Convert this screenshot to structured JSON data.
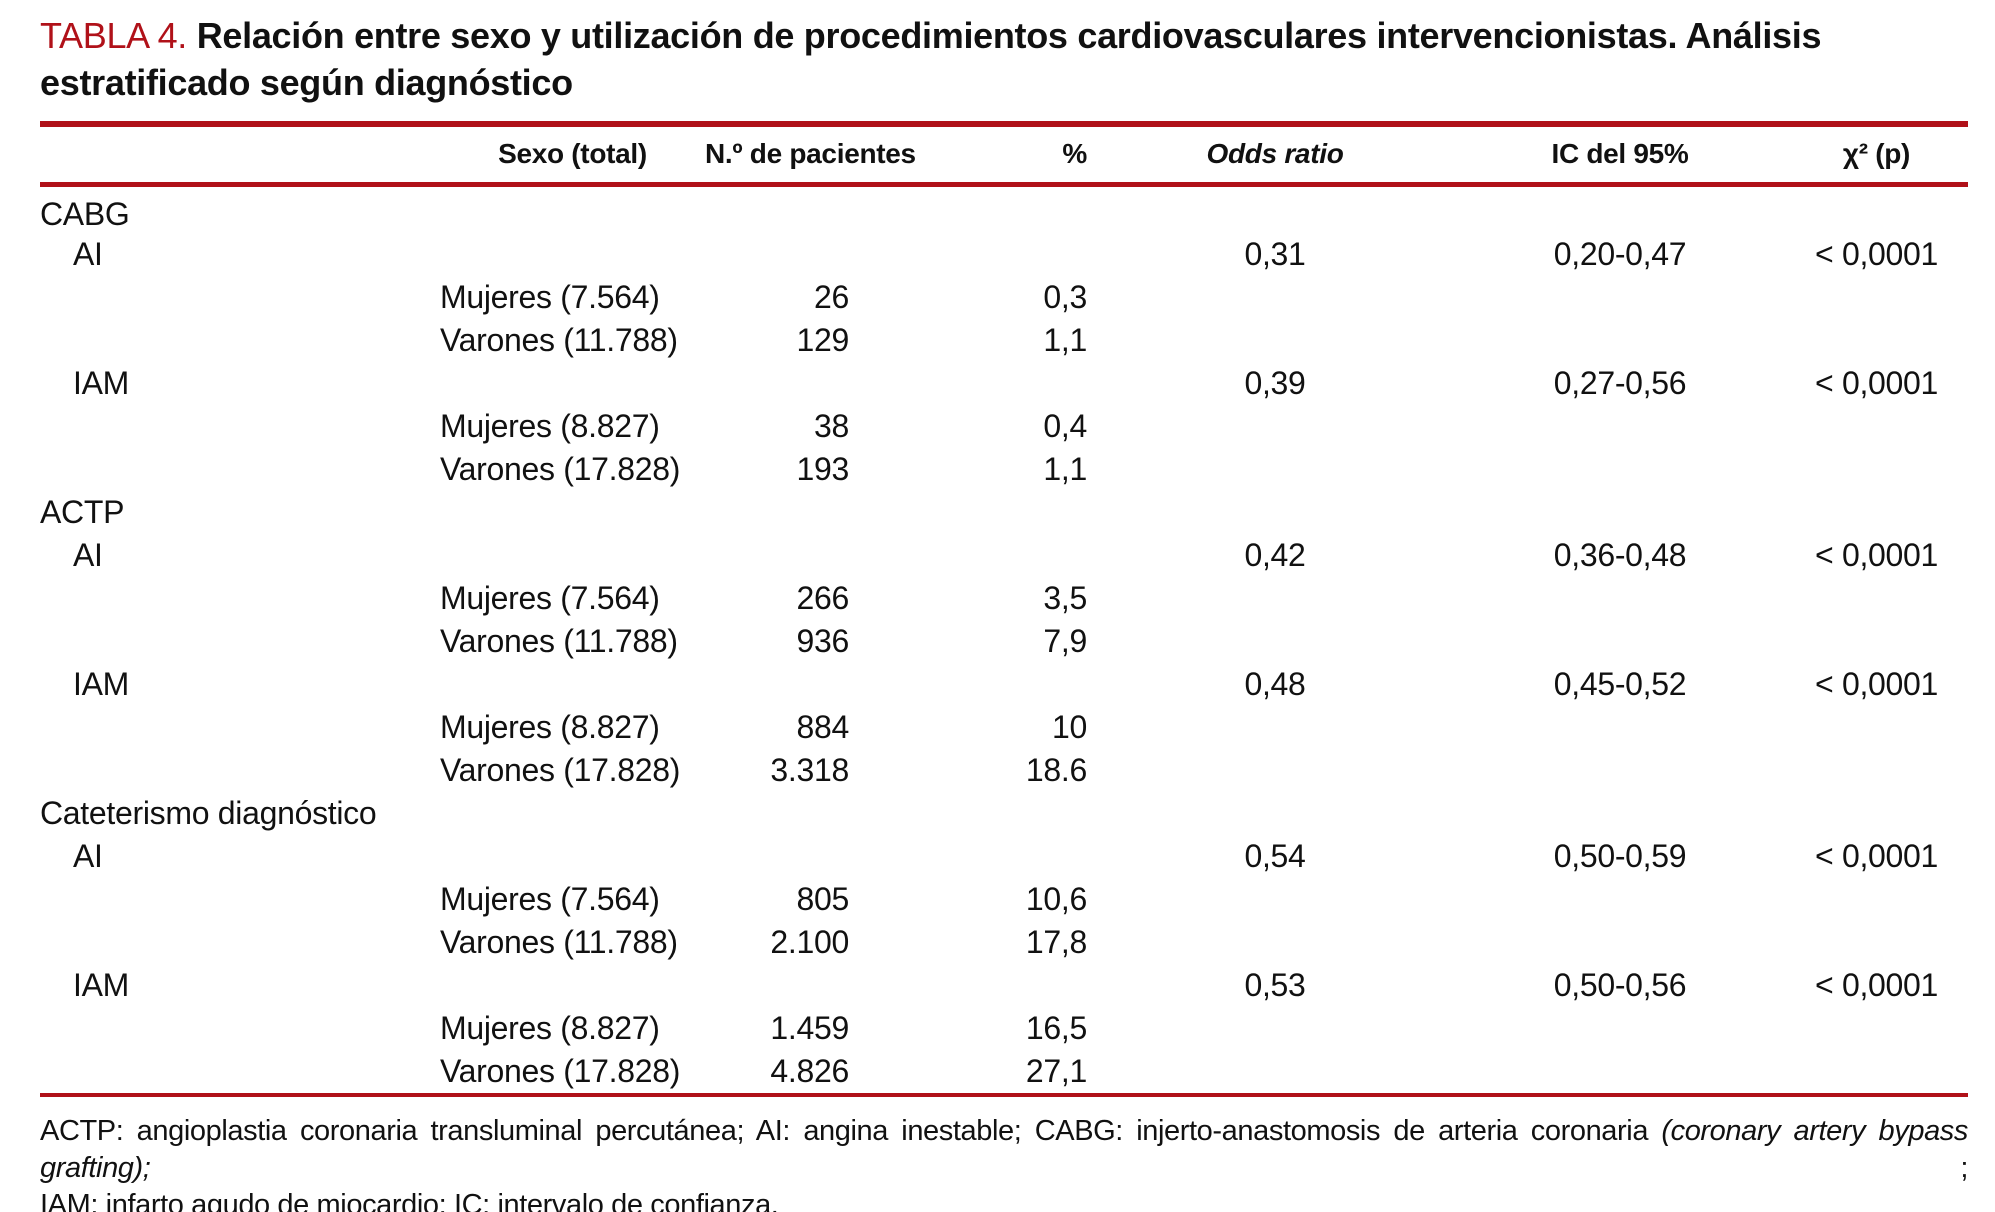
{
  "colors": {
    "accent": "#B01119",
    "text": "#111111"
  },
  "title": {
    "label": "TABLA 4.",
    "line1": "Relación entre sexo y utilización de procedimientos cardiovasculares intervencionistas. Análisis",
    "line2": "estratificado según diagnóstico"
  },
  "columns": [
    {
      "key": "diagnosis",
      "label": ""
    },
    {
      "key": "sexo",
      "label": "Sexo (total)"
    },
    {
      "key": "n",
      "label": "N.º de pacientes"
    },
    {
      "key": "pct",
      "label": "%"
    },
    {
      "key": "odds_ratio",
      "label": "Odds ratio"
    },
    {
      "key": "ic",
      "label": "IC del 95%"
    },
    {
      "key": "chi2",
      "label": "χ² (p)"
    }
  ],
  "rows": [
    {
      "type": "section",
      "diagnosis": "CABG"
    },
    {
      "type": "sub",
      "diagnosis": "AI",
      "odds_ratio": "0,31",
      "ic": "0,20-0,47",
      "chi2": "< 0,0001"
    },
    {
      "type": "data",
      "sexo": "Mujeres (7.564)",
      "n": "26",
      "pct": "0,3"
    },
    {
      "type": "data",
      "sexo": "Varones (11.788)",
      "n": "129",
      "pct": "1,1"
    },
    {
      "type": "sub",
      "diagnosis": "IAM",
      "odds_ratio": "0,39",
      "ic": "0,27-0,56",
      "chi2": "< 0,0001"
    },
    {
      "type": "data",
      "sexo": "Mujeres (8.827)",
      "n": "38",
      "pct": "0,4"
    },
    {
      "type": "data",
      "sexo": "Varones (17.828)",
      "n": "193",
      "pct": "1,1"
    },
    {
      "type": "section",
      "diagnosis": "ACTP"
    },
    {
      "type": "sub",
      "diagnosis": "AI",
      "odds_ratio": "0,42",
      "ic": "0,36-0,48",
      "chi2": "< 0,0001"
    },
    {
      "type": "data",
      "sexo": "Mujeres (7.564)",
      "n": "266",
      "pct": "3,5"
    },
    {
      "type": "data",
      "sexo": "Varones (11.788)",
      "n": "936",
      "pct": "7,9"
    },
    {
      "type": "sub",
      "diagnosis": "IAM",
      "odds_ratio": "0,48",
      "ic": "0,45-0,52",
      "chi2": "< 0,0001"
    },
    {
      "type": "data",
      "sexo": "Mujeres (8.827)",
      "n": "884",
      "pct": "10"
    },
    {
      "type": "data",
      "sexo": "Varones (17.828)",
      "n": "3.318",
      "pct": "18.6"
    },
    {
      "type": "section",
      "diagnosis": "Cateterismo diagnóstico"
    },
    {
      "type": "sub",
      "diagnosis": "AI",
      "odds_ratio": "0,54",
      "ic": "0,50-0,59",
      "chi2": "< 0,0001"
    },
    {
      "type": "data",
      "sexo": "Mujeres (7.564)",
      "n": "805",
      "pct": "10,6"
    },
    {
      "type": "data",
      "sexo": "Varones (11.788)",
      "n": "2.100",
      "pct": "17,8"
    },
    {
      "type": "sub",
      "diagnosis": "IAM",
      "odds_ratio": "0,53",
      "ic": "0,50-0,56",
      "chi2": "< 0,0001"
    },
    {
      "type": "data",
      "sexo": "Mujeres (8.827)",
      "n": "1.459",
      "pct": "16,5"
    },
    {
      "type": "data",
      "sexo": "Varones (17.828)",
      "n": "4.826",
      "pct": "27,1"
    }
  ],
  "footnote": {
    "line1_part1": "ACTP: angioplastia coronaria transluminal percutánea; AI: angina inestable; CABG: injerto-anastomosis de arteria coronaria ",
    "line1_italic": "(coronary artery bypass grafting);",
    "line1_part2": " ;",
    "line2": "IAM: infarto agudo de miocardio; IC: intervalo de confianza."
  }
}
